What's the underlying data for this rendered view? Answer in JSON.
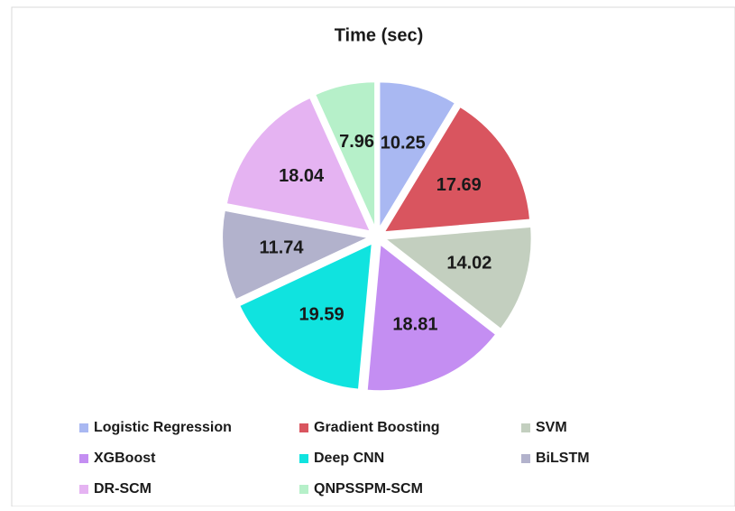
{
  "chart_data": {
    "type": "pie",
    "title": "Time (sec)",
    "categories": [
      "Logistic Regression",
      "Gradient Boosting",
      "SVM",
      "XGBoost",
      "Deep CNN",
      "BiLSTM",
      "DR-SCM",
      "QNPSSPM-SCM"
    ],
    "values": [
      10.25,
      17.69,
      14.02,
      18.81,
      19.59,
      11.74,
      18.04,
      7.96
    ],
    "colors": [
      "#a9b8f2",
      "#d9555f",
      "#c3cfbf",
      "#c48ef2",
      "#10e3df",
      "#b2b2cc",
      "#e5b3f2",
      "#b6f0c9"
    ]
  }
}
